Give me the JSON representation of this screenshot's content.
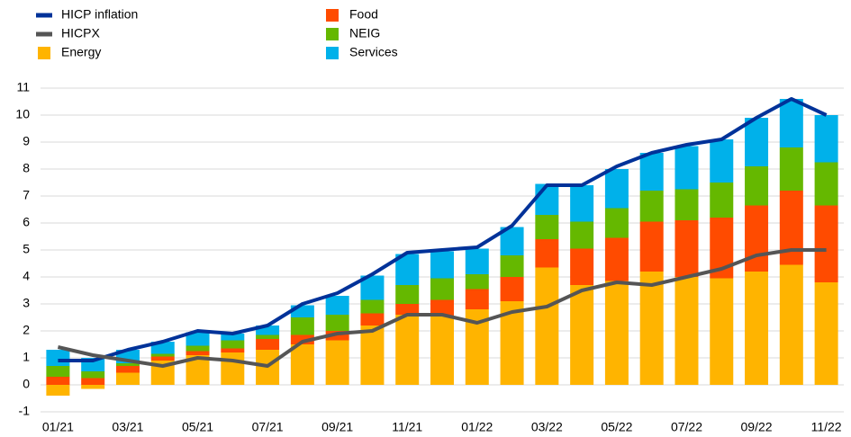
{
  "chart_data": {
    "type": "bar",
    "stacked": true,
    "categories": [
      "01/21",
      null,
      "03/21",
      null,
      "05/21",
      null,
      "07/21",
      null,
      "09/21",
      null,
      "11/21",
      null,
      "01/22",
      null,
      "03/22",
      null,
      "05/22",
      null,
      "07/22",
      null,
      "09/22",
      null,
      "11/22"
    ],
    "series": [
      {
        "name": "HICP inflation",
        "type": "line",
        "color": "#003299",
        "values": [
          0.9,
          0.9,
          1.3,
          1.6,
          2.0,
          1.9,
          2.2,
          3.0,
          3.4,
          4.1,
          4.9,
          5.0,
          5.1,
          5.9,
          7.4,
          7.4,
          8.1,
          8.6,
          8.9,
          9.1,
          9.9,
          10.6,
          10.0
        ]
      },
      {
        "name": "HICPX",
        "type": "line",
        "color": "#555555",
        "values": [
          1.4,
          1.1,
          0.9,
          0.7,
          1.0,
          0.9,
          0.7,
          1.6,
          1.9,
          2.0,
          2.6,
          2.6,
          2.3,
          2.7,
          2.9,
          3.5,
          3.8,
          3.7,
          4.0,
          4.3,
          4.8,
          5.0,
          5.0
        ]
      },
      {
        "name": "Energy",
        "type": "bar",
        "color": "#ffb400",
        "values": [
          -0.4,
          -0.15,
          0.45,
          0.9,
          1.1,
          1.2,
          1.3,
          1.5,
          1.65,
          2.2,
          2.6,
          2.55,
          2.8,
          3.1,
          4.35,
          3.7,
          3.85,
          4.2,
          4.0,
          3.95,
          4.2,
          4.45,
          3.8
        ]
      },
      {
        "name": "Food",
        "type": "bar",
        "color": "#ff4b00",
        "values": [
          0.3,
          0.25,
          0.25,
          0.15,
          0.15,
          0.15,
          0.4,
          0.35,
          0.35,
          0.45,
          0.4,
          0.6,
          0.75,
          0.9,
          1.05,
          1.35,
          1.6,
          1.85,
          2.1,
          2.25,
          2.45,
          2.75,
          2.85
        ]
      },
      {
        "name": "NEIG",
        "type": "bar",
        "color": "#65b800",
        "values": [
          0.4,
          0.25,
          0.1,
          0.1,
          0.2,
          0.3,
          0.15,
          0.65,
          0.6,
          0.5,
          0.7,
          0.8,
          0.55,
          0.8,
          0.9,
          1.0,
          1.1,
          1.15,
          1.15,
          1.3,
          1.45,
          1.6,
          1.6
        ]
      },
      {
        "name": "Services",
        "type": "bar",
        "color": "#00b1ea",
        "values": [
          0.6,
          0.5,
          0.5,
          0.45,
          0.5,
          0.25,
          0.35,
          0.45,
          0.7,
          0.9,
          1.15,
          1.0,
          0.95,
          1.05,
          1.15,
          1.35,
          1.45,
          1.4,
          1.6,
          1.6,
          1.8,
          1.8,
          1.75
        ]
      }
    ],
    "ylim": [
      -1,
      11
    ],
    "yticks": [
      -1,
      0,
      1,
      2,
      3,
      4,
      5,
      6,
      7,
      8,
      9,
      10,
      11
    ],
    "grid": true
  }
}
